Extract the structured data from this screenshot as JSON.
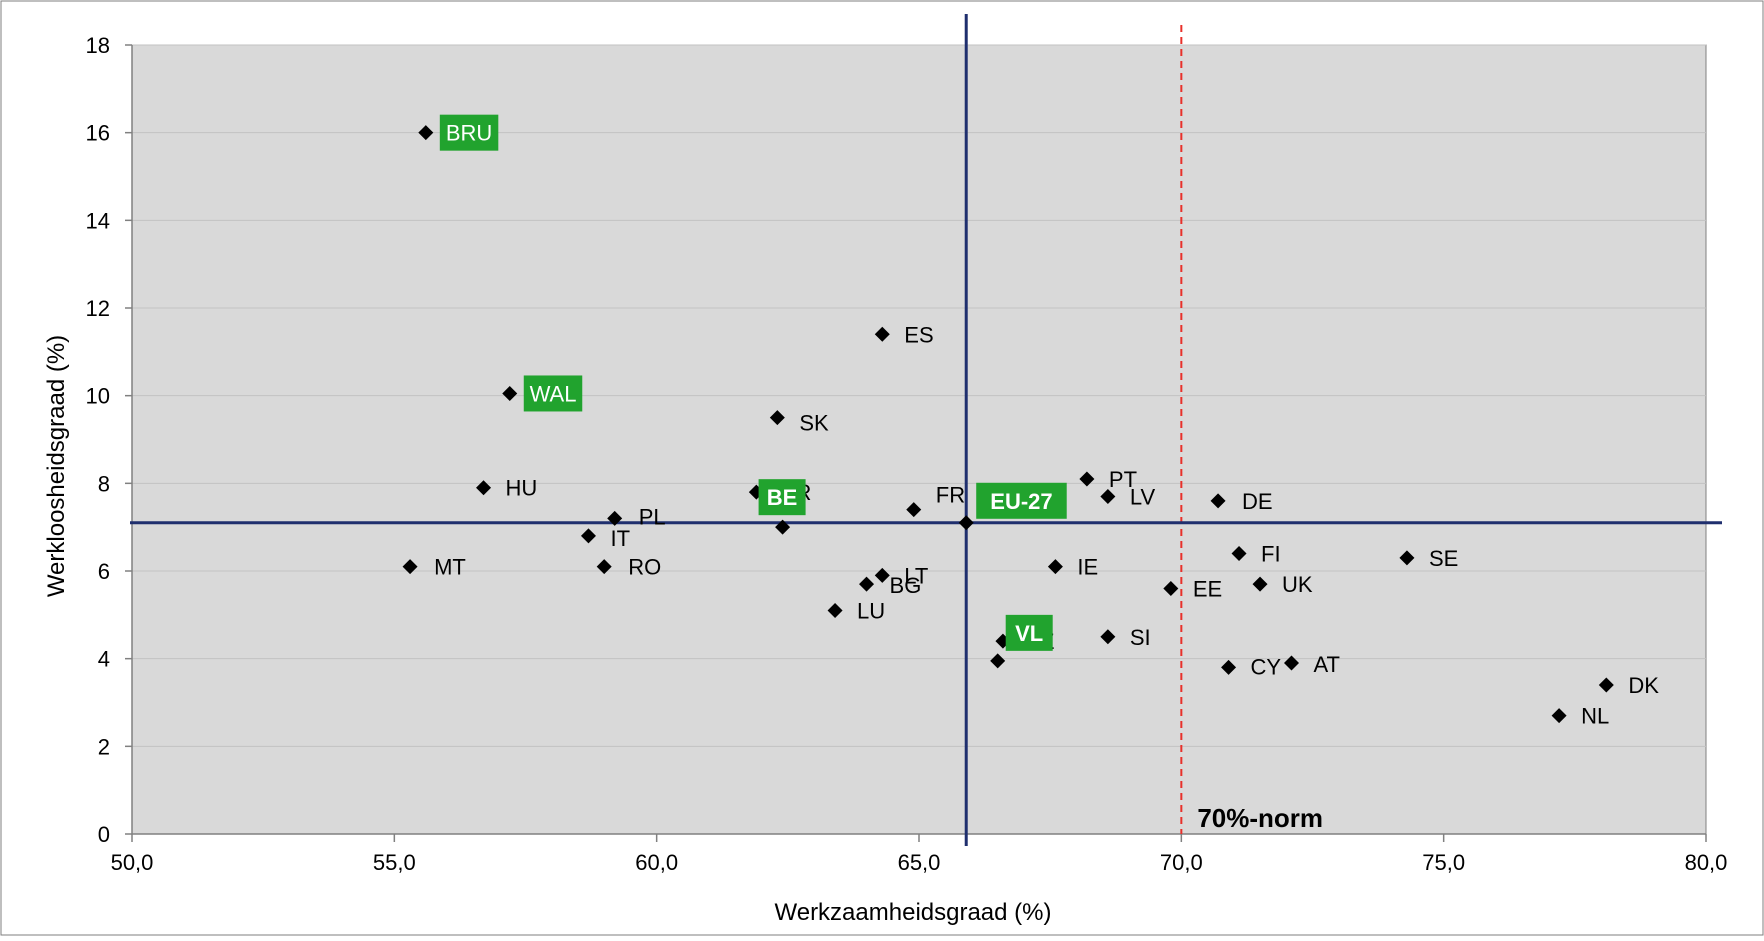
{
  "chart_data": {
    "type": "scatter",
    "title": "",
    "xlabel": "Werkzaamheidsgraad (%)",
    "ylabel": "Werkloosheidsgraad (%)",
    "xlim": [
      50,
      80
    ],
    "ylim": [
      0,
      18
    ],
    "x_ticks": [
      50,
      55,
      60,
      65,
      70,
      75,
      80
    ],
    "x_tick_labels": [
      "50,0",
      "55,0",
      "60,0",
      "65,0",
      "70,0",
      "75,0",
      "80,0"
    ],
    "y_ticks": [
      0,
      2,
      4,
      6,
      8,
      10,
      12,
      14,
      16,
      18
    ],
    "y_tick_labels": [
      "0",
      "2",
      "4",
      "6",
      "8",
      "10",
      "12",
      "14",
      "16",
      "18"
    ],
    "grid": "horizontal",
    "colors": {
      "plot_bg": "#d9d9d9",
      "marker": "#000000",
      "reference_lines": "#1f2f6e",
      "norm_line": "#e8302a",
      "highlight_box": "#21a32e",
      "highlight_text": "#ffffff"
    },
    "reference_lines": {
      "vertical_x": 65.9,
      "horizontal_y": 7.1,
      "norm_x": 70,
      "norm_label": "70%-norm"
    },
    "points": [
      {
        "label": "BRU",
        "x": 55.6,
        "y": 16.0,
        "highlight": true
      },
      {
        "label": "WAL",
        "x": 57.2,
        "y": 10.05,
        "highlight": true
      },
      {
        "label": "ES",
        "x": 64.3,
        "y": 11.4
      },
      {
        "label": "SK",
        "x": 62.3,
        "y": 9.5
      },
      {
        "label": "HU",
        "x": 56.7,
        "y": 7.9
      },
      {
        "label": "PL",
        "x": 59.2,
        "y": 7.2
      },
      {
        "label": "IT",
        "x": 58.7,
        "y": 6.8
      },
      {
        "label": "MT",
        "x": 55.3,
        "y": 6.1
      },
      {
        "label": "RO",
        "x": 59.0,
        "y": 6.1
      },
      {
        "label": "GR",
        "x": 61.9,
        "y": 7.8
      },
      {
        "label": "BE",
        "x": 62.4,
        "y": 7.0,
        "highlight": true
      },
      {
        "label": "FR",
        "x": 64.9,
        "y": 7.4
      },
      {
        "label": "EU-27",
        "x": 65.9,
        "y": 7.1,
        "highlight": true
      },
      {
        "label": "LT",
        "x": 64.3,
        "y": 5.9
      },
      {
        "label": "BG",
        "x": 64.0,
        "y": 5.7
      },
      {
        "label": "LU",
        "x": 63.4,
        "y": 5.1
      },
      {
        "label": "PT",
        "x": 68.2,
        "y": 8.1
      },
      {
        "label": "LV",
        "x": 68.6,
        "y": 7.7
      },
      {
        "label": "IE",
        "x": 67.6,
        "y": 6.1
      },
      {
        "label": "EE",
        "x": 69.8,
        "y": 5.6
      },
      {
        "label": "CZ",
        "x": 66.6,
        "y": 4.4
      },
      {
        "label": "SI",
        "x": 68.6,
        "y": 4.5
      },
      {
        "label": "VL",
        "x": 66.5,
        "y": 3.95,
        "highlight": true
      },
      {
        "label": "DE",
        "x": 70.7,
        "y": 7.6
      },
      {
        "label": "FI",
        "x": 71.1,
        "y": 6.4
      },
      {
        "label": "UK",
        "x": 71.5,
        "y": 5.7
      },
      {
        "label": "SE",
        "x": 74.3,
        "y": 6.3
      },
      {
        "label": "CY",
        "x": 70.9,
        "y": 3.8
      },
      {
        "label": "AT",
        "x": 72.1,
        "y": 3.9
      },
      {
        "label": "DK",
        "x": 78.1,
        "y": 3.4
      },
      {
        "label": "NL",
        "x": 77.2,
        "y": 2.7
      }
    ]
  }
}
